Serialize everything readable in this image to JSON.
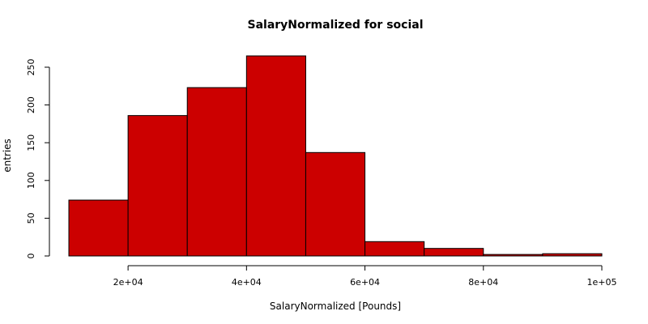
{
  "chart_data": {
    "type": "bar",
    "title": "SalaryNormalized for social",
    "xlabel": "SalaryNormalized [Pounds]",
    "ylabel": "entries",
    "bar_color": "#cc0000",
    "bins": [
      {
        "x0": 10000,
        "x1": 20000,
        "count": 74
      },
      {
        "x0": 20000,
        "x1": 30000,
        "count": 186
      },
      {
        "x0": 30000,
        "x1": 40000,
        "count": 223
      },
      {
        "x0": 40000,
        "x1": 50000,
        "count": 265
      },
      {
        "x0": 50000,
        "x1": 60000,
        "count": 137
      },
      {
        "x0": 60000,
        "x1": 70000,
        "count": 19
      },
      {
        "x0": 70000,
        "x1": 80000,
        "count": 10
      },
      {
        "x0": 80000,
        "x1": 90000,
        "count": 2
      },
      {
        "x0": 90000,
        "x1": 100000,
        "count": 3
      }
    ],
    "xlim": [
      10000,
      100000
    ],
    "ylim": [
      0,
      265
    ],
    "x_ticks": [
      {
        "value": 20000,
        "label": "2e+04"
      },
      {
        "value": 40000,
        "label": "4e+04"
      },
      {
        "value": 60000,
        "label": "6e+04"
      },
      {
        "value": 80000,
        "label": "8e+04"
      },
      {
        "value": 100000,
        "label": "1e+05"
      }
    ],
    "y_ticks": [
      {
        "value": 0,
        "label": "0"
      },
      {
        "value": 50,
        "label": "50"
      },
      {
        "value": 100,
        "label": "100"
      },
      {
        "value": 150,
        "label": "150"
      },
      {
        "value": 200,
        "label": "200"
      },
      {
        "value": 250,
        "label": "250"
      }
    ],
    "grid": false,
    "legend": "none"
  }
}
